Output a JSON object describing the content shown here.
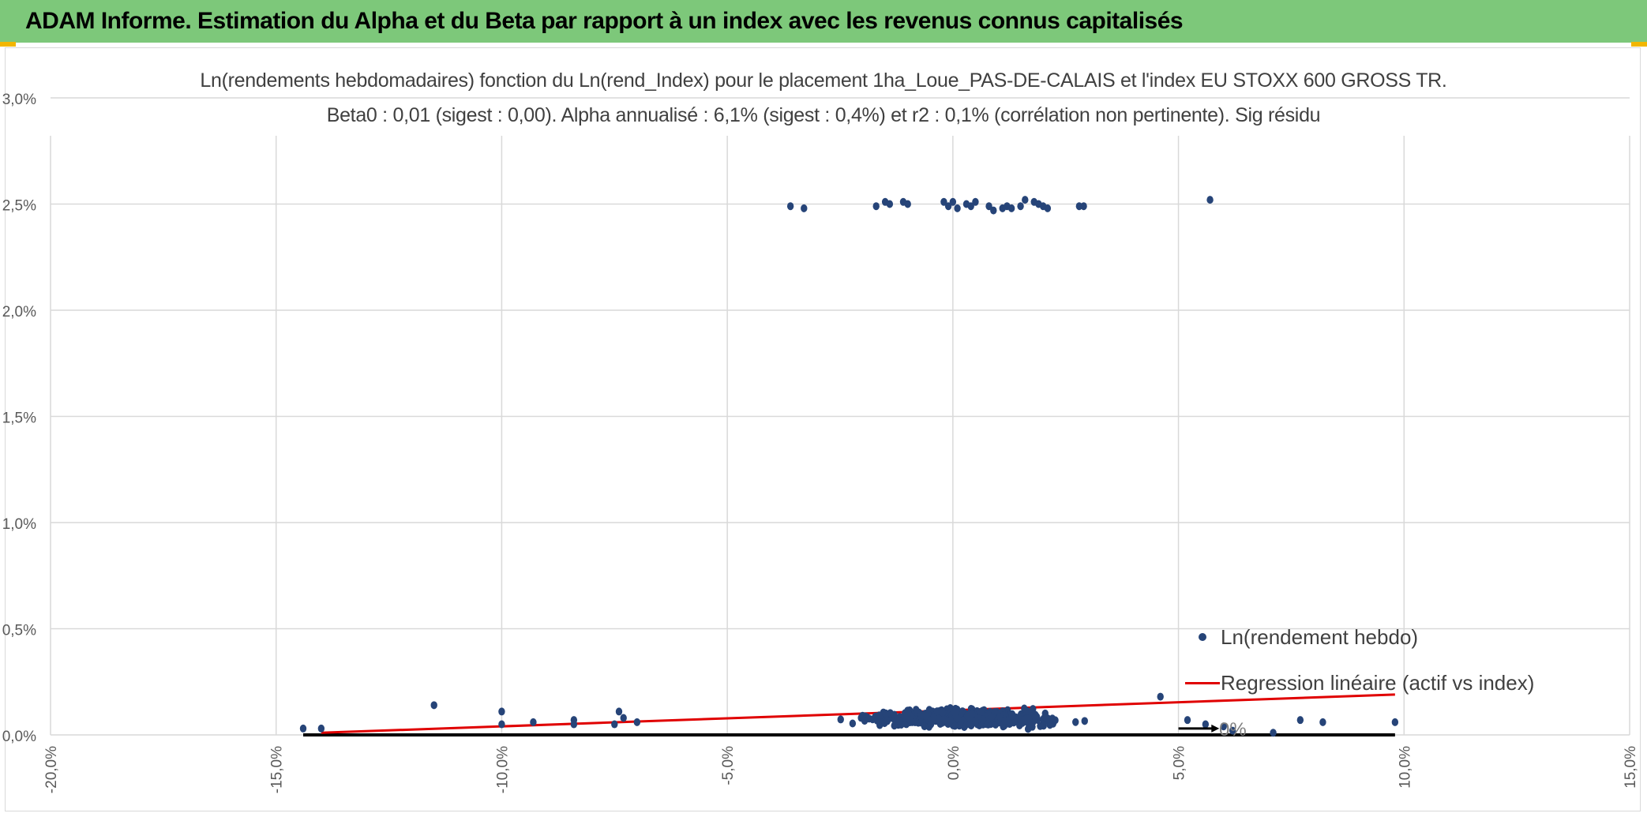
{
  "banner": {
    "title": "ADAM Informe. Estimation du Alpha et du Beta par rapport à un index avec les revenus connus capitalisés"
  },
  "colors": {
    "banner_bg": "#7dc87a",
    "points": "#264478",
    "regression": "#e00000",
    "zero_line": "#000000",
    "grid": "#d9d9d9",
    "corner_accent": "#f2b600"
  },
  "chart_data": {
    "type": "scatter",
    "title": "Ln(rendements hebdomadaires) fonction du Ln(rend_Index) pour le placement 1ha_Loue_PAS-DE-CALAIS et l'index EU STOXX 600 GROSS TR.",
    "subtitle": "Beta0 : 0,01 (sigest : 0,00). Alpha annualisé : 6,1% (sigest : 0,4%) et r2 : 0,1% (corrélation non pertinente). Sig résidu",
    "xlabel": "",
    "ylabel": "",
    "xlim": [
      -0.2,
      0.15
    ],
    "ylim": [
      0,
      0.03
    ],
    "x_ticks": [
      "-20,0%",
      "-15,0%",
      "-10,0%",
      "-5,0%",
      "0,0%",
      "5,0%",
      "10,0%",
      "15,0%"
    ],
    "y_ticks": [
      "0,0%",
      "0,5%",
      "1,0%",
      "1,5%",
      "2,0%",
      "2,5%",
      "3,0%"
    ],
    "grid": true,
    "legend_position": "right",
    "series": [
      {
        "name": "Ln(rendement hebdo)",
        "kind": "scatter",
        "high_points": [
          [
            -0.036,
            0.0249
          ],
          [
            -0.033,
            0.0248
          ],
          [
            -0.017,
            0.0249
          ],
          [
            -0.015,
            0.0251
          ],
          [
            -0.014,
            0.025
          ],
          [
            -0.011,
            0.0251
          ],
          [
            -0.01,
            0.025
          ],
          [
            -0.002,
            0.0251
          ],
          [
            -0.001,
            0.0249
          ],
          [
            0.0,
            0.0251
          ],
          [
            0.001,
            0.0248
          ],
          [
            0.003,
            0.025
          ],
          [
            0.004,
            0.0249
          ],
          [
            0.005,
            0.0251
          ],
          [
            0.008,
            0.0249
          ],
          [
            0.009,
            0.0247
          ],
          [
            0.011,
            0.0248
          ],
          [
            0.012,
            0.0249
          ],
          [
            0.013,
            0.0248
          ],
          [
            0.015,
            0.0249
          ],
          [
            0.016,
            0.0252
          ],
          [
            0.018,
            0.0251
          ],
          [
            0.019,
            0.025
          ],
          [
            0.02,
            0.0249
          ],
          [
            0.021,
            0.0248
          ],
          [
            0.028,
            0.0249
          ],
          [
            0.029,
            0.0249
          ],
          [
            0.057,
            0.0252
          ]
        ],
        "outlier_points": [
          [
            -0.144,
            0.0003
          ],
          [
            -0.14,
            0.0003
          ],
          [
            -0.115,
            0.0014
          ],
          [
            -0.1,
            0.0011
          ],
          [
            -0.1,
            0.0005
          ],
          [
            -0.093,
            0.0006
          ],
          [
            -0.084,
            0.0007
          ],
          [
            -0.084,
            0.0005
          ],
          [
            -0.075,
            0.0005
          ],
          [
            -0.074,
            0.0011
          ],
          [
            -0.073,
            0.0008
          ],
          [
            -0.07,
            0.0006
          ],
          [
            0.046,
            0.0018
          ],
          [
            0.052,
            0.0007
          ],
          [
            0.056,
            0.0005
          ],
          [
            0.06,
            0.0004
          ],
          [
            0.062,
            0.0002
          ],
          [
            0.071,
            0.0001
          ],
          [
            0.077,
            0.0007
          ],
          [
            0.082,
            0.0006
          ],
          [
            0.098,
            0.0006
          ]
        ],
        "main_cloud": {
          "x_range": [
            -0.065,
            0.045
          ],
          "x_center": 0.002,
          "y_range": [
            0.0002,
            0.0019
          ],
          "y_center": 0.0008,
          "approx_count": 560
        }
      },
      {
        "name": "Regression linéaire (actif vs index)",
        "kind": "line",
        "points": [
          [
            -0.14,
            0.0001
          ],
          [
            0.098,
            0.0019
          ]
        ]
      },
      {
        "name": "0%",
        "kind": "line",
        "points": [
          [
            -0.144,
            0.0
          ],
          [
            0.098,
            0.0
          ]
        ]
      }
    ]
  }
}
